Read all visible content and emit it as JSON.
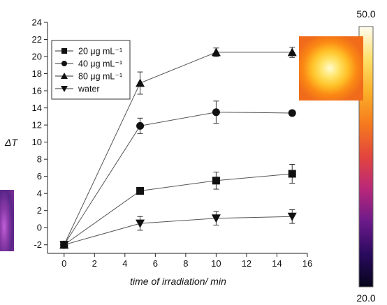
{
  "chart_data": {
    "type": "line",
    "xlabel": "time of irradiation/ min",
    "ylabel": "ΔT",
    "xlim": [
      -1,
      16
    ],
    "ylim": [
      -3,
      24
    ],
    "xticks": [
      0,
      2,
      4,
      6,
      8,
      10,
      12,
      14,
      16
    ],
    "yticks": [
      -2,
      0,
      2,
      4,
      6,
      8,
      10,
      12,
      14,
      16,
      18,
      20,
      22,
      24
    ],
    "x": [
      0,
      5,
      10,
      15
    ],
    "legend_position": "top-left",
    "grid": false,
    "series": [
      {
        "name": "20 μg mL⁻¹",
        "marker": "square",
        "values": [
          -2,
          4.3,
          5.5,
          6.3
        ],
        "errors": [
          0.3,
          0.3,
          1.0,
          1.1
        ]
      },
      {
        "name": "40 μg mL⁻¹",
        "marker": "circle",
        "values": [
          -2,
          11.9,
          13.5,
          13.4
        ],
        "errors": [
          0.3,
          0.9,
          1.3,
          0.3
        ]
      },
      {
        "name": "80 μg mL⁻¹",
        "marker": "triangle-up",
        "values": [
          -2,
          16.9,
          20.5,
          20.5
        ],
        "errors": [
          0.3,
          1.3,
          0.5,
          0.6
        ]
      },
      {
        "name": "water",
        "marker": "triangle-down",
        "values": [
          -2,
          0.5,
          1.1,
          1.3
        ],
        "errors": [
          0.3,
          0.8,
          0.8,
          0.8
        ]
      }
    ]
  },
  "colorbar": {
    "max_label": "50.0",
    "min_label": "20.0",
    "gradient": [
      "#05051a",
      "#2a0a5e",
      "#6b1a8a",
      "#b8287a",
      "#e2453e",
      "#f57a1e",
      "#fbb02a",
      "#fde06a",
      "#fefcf0"
    ]
  },
  "thermal_images": [
    {
      "name": "thermal-image-hot",
      "colors": [
        "#fffbd0",
        "#ffe46a",
        "#ffc228",
        "#fb8a14",
        "#f06c1a"
      ]
    },
    {
      "name": "thermal-image-cold",
      "colors": [
        "#c060d8",
        "#8a3aa8",
        "#5a2688",
        "#7e3096"
      ]
    }
  ]
}
